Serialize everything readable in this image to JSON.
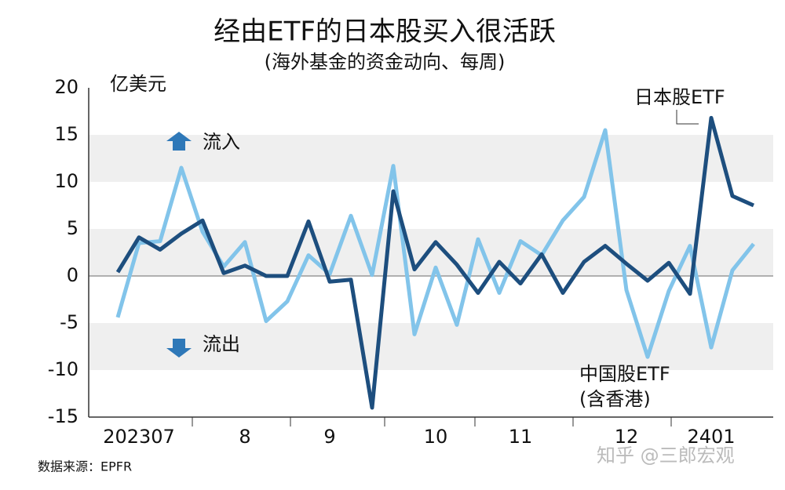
{
  "chart_data": {
    "type": "line",
    "title": "经由ETF的日本股买入很活跃",
    "subtitle": "(海外基金的资金动向、每周)",
    "y_unit": "亿美元",
    "inflow_label": "流入",
    "outflow_label": "流出",
    "source": "数据来源：EPFR",
    "watermark": "知乎 @三郎宏观",
    "categories": [
      null,
      "202307",
      null,
      null,
      null,
      null,
      "8",
      null,
      null,
      null,
      "9",
      null,
      null,
      null,
      null,
      "10",
      null,
      null,
      null,
      "11",
      null,
      null,
      null,
      null,
      "12",
      null,
      null,
      null,
      "2401",
      null,
      null
    ],
    "series": [
      {
        "name": "日本股ETF",
        "color": "#1d4e7e",
        "values": [
          0.4,
          4.1,
          2.8,
          4.5,
          5.9,
          0.3,
          1.1,
          0,
          0,
          5.8,
          -0.6,
          -0.4,
          -14,
          9,
          0.7,
          3.6,
          1.2,
          -1.8,
          1.5,
          -0.8,
          2.3,
          -1.8,
          1.5,
          3.2,
          1.3,
          -0.5,
          1.4,
          -1.9,
          16.8,
          8.5,
          7.5
        ]
      },
      {
        "name": "中国股ETF",
        "note": "(含香港)",
        "color": "#82c4ea",
        "values": [
          -4.4,
          3.5,
          3.7,
          11.5,
          4.7,
          1.0,
          3.6,
          -4.8,
          -2.7,
          2.2,
          0.2,
          6.4,
          0.1,
          11.7,
          -6.2,
          0.9,
          -5.2,
          3.9,
          -1.8,
          3.7,
          2.2,
          5.9,
          8.4,
          15.5,
          -1.5,
          -8.6,
          -1.6,
          3.2,
          -7.6,
          0.6,
          3.4
        ]
      }
    ],
    "ylim": [
      -15,
      20
    ],
    "yticks": [
      -15,
      -10,
      -5,
      0,
      5,
      10,
      15,
      20
    ],
    "grid": true
  }
}
